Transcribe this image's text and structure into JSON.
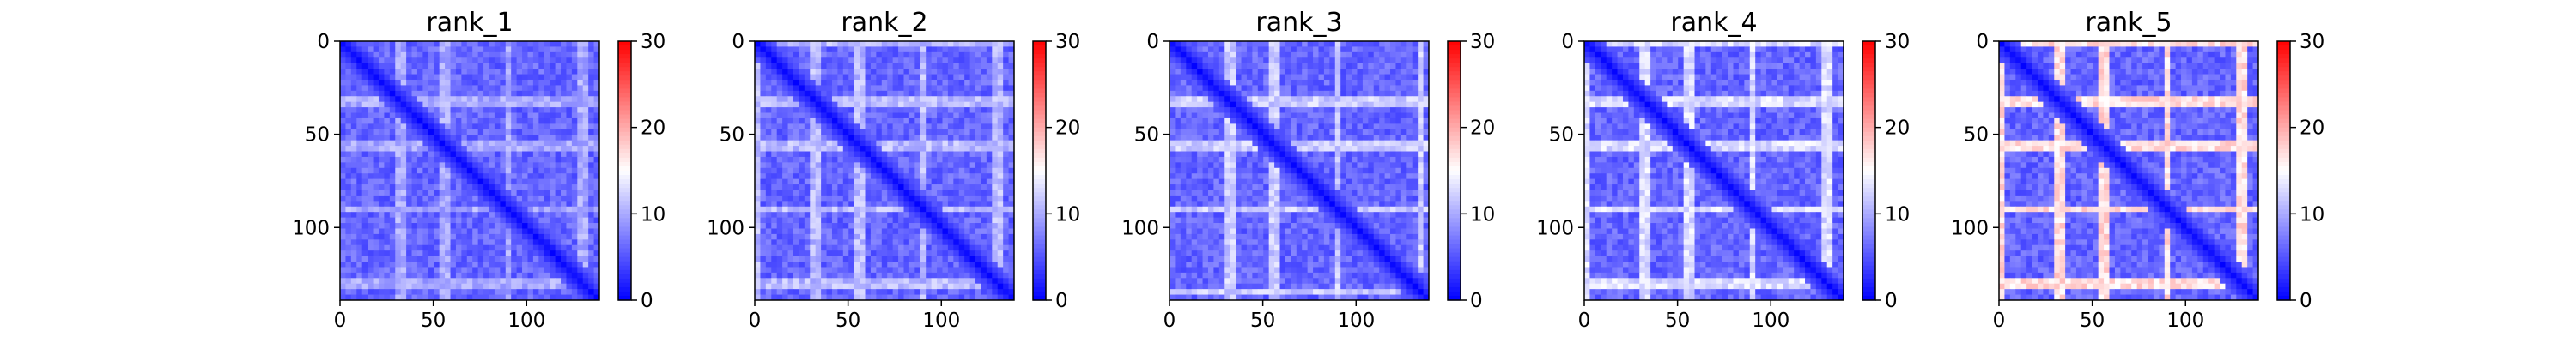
{
  "figure": {
    "colormap": {
      "low": "#0000ff",
      "mid": "#ffffff",
      "high": "#ff0000"
    }
  },
  "chart_data": [
    {
      "type": "heatmap",
      "title": "rank_1",
      "xlim": [
        0,
        139
      ],
      "ylim": [
        139,
        0
      ],
      "x_ticks": [
        0,
        50,
        100
      ],
      "y_ticks": [
        0,
        50,
        100
      ],
      "colorbar": {
        "min": 0,
        "max": 30,
        "ticks": [
          0,
          10,
          20,
          30
        ]
      },
      "value_profile": {
        "diagonal": 0,
        "typical": 6,
        "bright_rows": [
          32,
          55,
          90,
          130
        ],
        "bright_value": 10
      }
    },
    {
      "type": "heatmap",
      "title": "rank_2",
      "xlim": [
        0,
        139
      ],
      "ylim": [
        139,
        0
      ],
      "x_ticks": [
        0,
        50,
        100
      ],
      "y_ticks": [
        0,
        50,
        100
      ],
      "colorbar": {
        "min": 0,
        "max": 30,
        "ticks": [
          0,
          10,
          20,
          30
        ]
      },
      "value_profile": {
        "diagonal": 0,
        "typical": 6,
        "bright_rows": [
          0,
          32,
          55,
          90,
          130
        ],
        "bright_value": 11
      }
    },
    {
      "type": "heatmap",
      "title": "rank_3",
      "xlim": [
        0,
        139
      ],
      "ylim": [
        139,
        0
      ],
      "x_ticks": [
        0,
        50,
        100
      ],
      "y_ticks": [
        0,
        50,
        100
      ],
      "colorbar": {
        "min": 0,
        "max": 30,
        "ticks": [
          0,
          10,
          20,
          30
        ]
      },
      "value_profile": {
        "diagonal": 0,
        "typical": 6,
        "bright_rows": [
          32,
          55,
          90,
          135
        ],
        "bright_value": 12
      }
    },
    {
      "type": "heatmap",
      "title": "rank_4",
      "xlim": [
        0,
        139
      ],
      "ylim": [
        139,
        0
      ],
      "x_ticks": [
        0,
        50,
        100
      ],
      "y_ticks": [
        0,
        50,
        100
      ],
      "colorbar": {
        "min": 0,
        "max": 30,
        "ticks": [
          0,
          10,
          20,
          30
        ]
      },
      "value_profile": {
        "diagonal": 0,
        "typical": 6,
        "bright_rows": [
          0,
          32,
          55,
          90,
          130
        ],
        "bright_value": 13
      }
    },
    {
      "type": "heatmap",
      "title": "rank_5",
      "xlim": [
        0,
        139
      ],
      "ylim": [
        139,
        0
      ],
      "x_ticks": [
        0,
        50,
        100
      ],
      "y_ticks": [
        0,
        50,
        100
      ],
      "colorbar": {
        "min": 0,
        "max": 30,
        "ticks": [
          0,
          10,
          20,
          30
        ]
      },
      "value_profile": {
        "diagonal": 0,
        "typical": 6,
        "bright_rows": [
          0,
          32,
          55,
          90,
          130
        ],
        "bright_value": 17
      }
    }
  ]
}
